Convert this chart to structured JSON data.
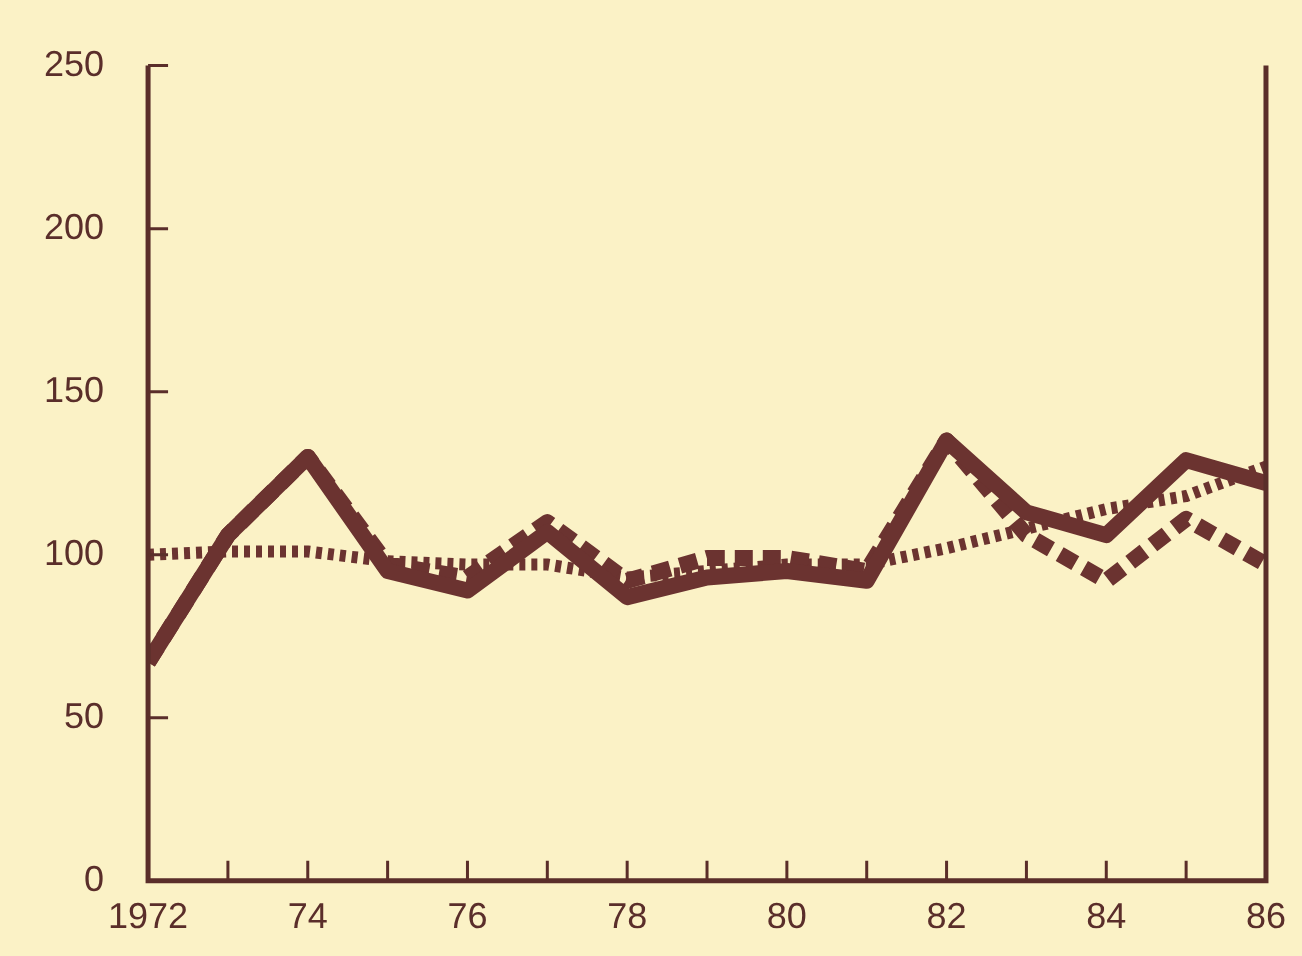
{
  "chart_data": {
    "type": "line",
    "x": [
      1972,
      1973,
      1974,
      1975,
      1976,
      1977,
      1978,
      1979,
      1980,
      1981,
      1982,
      1983,
      1984,
      1985,
      1986
    ],
    "series": [
      {
        "color": "#6b3330",
        "line_style": "solid",
        "values": [
          67,
          106,
          130,
          95,
          89,
          107,
          87,
          93,
          95,
          92,
          135,
          113,
          106,
          129,
          122
        ]
      },
      {
        "color": "#6b3330",
        "line_style": "dashed",
        "values": [
          67,
          106,
          130,
          97,
          93,
          110,
          92,
          99,
          99,
          95,
          135,
          106,
          92,
          111,
          97
        ]
      },
      {
        "color": "#6b3330",
        "line_style": "dotted",
        "values": [
          100,
          101,
          101,
          98,
          97,
          97,
          93,
          95,
          97,
          97,
          102,
          108,
          114,
          118,
          127
        ]
      }
    ],
    "xlim": [
      1972,
      1986
    ],
    "xticks": [
      1972,
      {
        "value": 1973,
        "label": null
      },
      {
        "value": 1974,
        "label": "74"
      },
      {
        "value": 1975,
        "label": null
      },
      {
        "value": 1976,
        "label": "76"
      },
      {
        "value": 1977,
        "label": null
      },
      {
        "value": 1978,
        "label": "78"
      },
      {
        "value": 1979,
        "label": null
      },
      {
        "value": 1980,
        "label": "80"
      },
      {
        "value": 1981,
        "label": null
      },
      {
        "value": 1982,
        "label": "82"
      },
      {
        "value": 1983,
        "label": null
      },
      {
        "value": 1984,
        "label": "84"
      },
      {
        "value": 1985,
        "label": null
      },
      {
        "value": 1986,
        "label": "86"
      }
    ],
    "ylim": [
      0,
      250
    ],
    "yticks": [
      0,
      50,
      100,
      150,
      200,
      250
    ],
    "grid": false,
    "legend": false,
    "marker": "none"
  }
}
